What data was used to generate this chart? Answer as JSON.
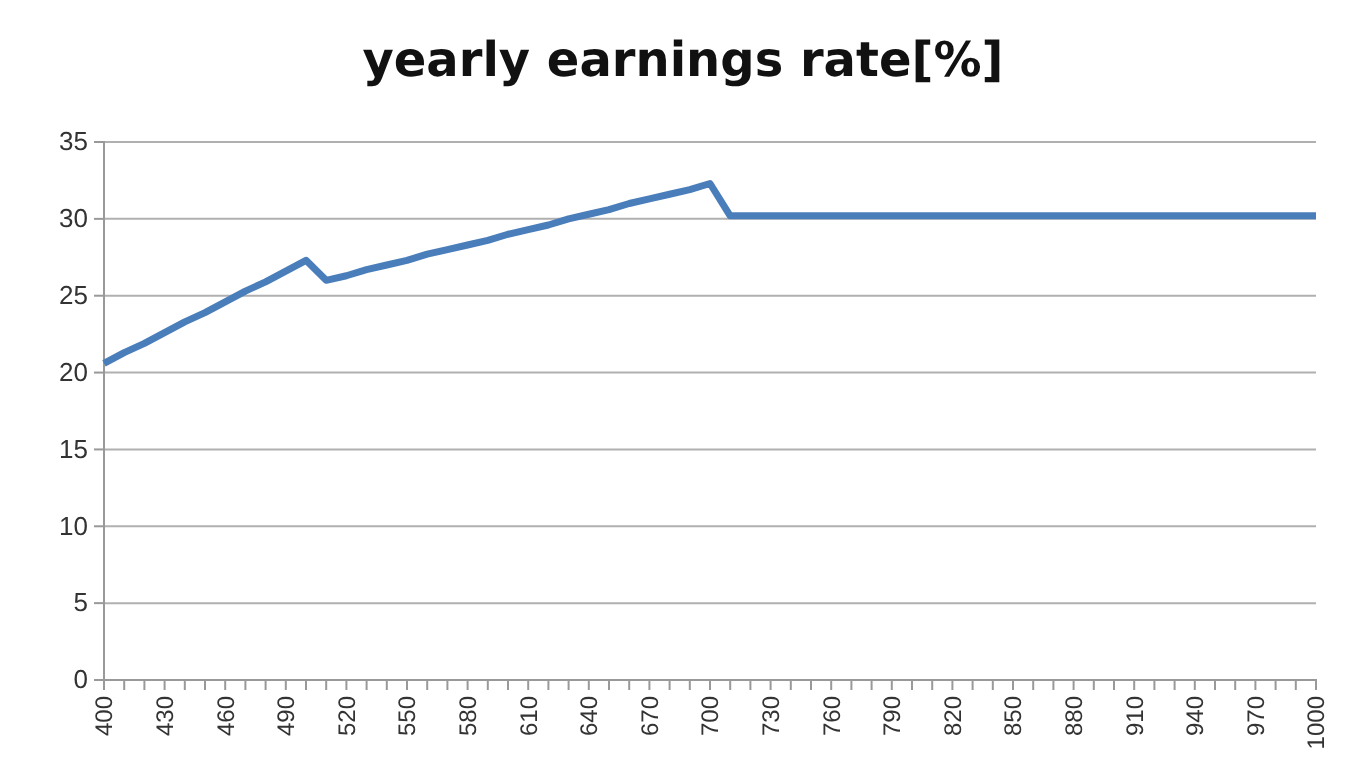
{
  "chart_data": {
    "type": "line",
    "title": "yearly earnings rate[%]",
    "categories": [
      "400",
      null,
      null,
      "430",
      null,
      null,
      "460",
      null,
      null,
      "490",
      null,
      null,
      "520",
      null,
      null,
      "550",
      null,
      null,
      "580",
      null,
      null,
      "610",
      null,
      null,
      "640",
      null,
      null,
      "670",
      null,
      null,
      "700",
      null,
      null,
      "730",
      null,
      null,
      "760",
      null,
      null,
      "790",
      null,
      null,
      "820",
      null,
      null,
      "850",
      null,
      null,
      "880",
      null,
      null,
      "910",
      null,
      null,
      "940",
      null,
      null,
      "970",
      null,
      null,
      "1000"
    ],
    "series": [
      {
        "color": "#4a7ebb",
        "values": [
          20.6,
          21.3,
          21.9,
          22.6,
          23.3,
          23.9,
          24.6,
          25.3,
          25.9,
          26.6,
          27.3,
          26.0,
          26.3,
          26.7,
          27.0,
          27.3,
          27.7,
          28.0,
          28.3,
          28.6,
          29.0,
          29.3,
          29.6,
          30.0,
          30.3,
          30.6,
          31.0,
          31.3,
          31.6,
          31.9,
          32.3,
          30.2,
          30.2,
          30.2,
          30.2,
          30.2,
          30.2,
          30.2,
          30.2,
          30.2,
          30.2,
          30.2,
          30.2,
          30.2,
          30.2,
          30.2,
          30.2,
          30.2,
          30.2,
          30.2,
          30.2,
          30.2,
          30.2,
          30.2,
          30.2,
          30.2,
          30.2,
          30.2,
          30.2,
          30.2,
          30.2
        ]
      }
    ],
    "ylim": [
      0,
      35
    ],
    "yticks": [
      0,
      5,
      10,
      15,
      20,
      25,
      30,
      35
    ],
    "grid": "y",
    "legend": false,
    "marker": "none",
    "line_style": "solid"
  }
}
